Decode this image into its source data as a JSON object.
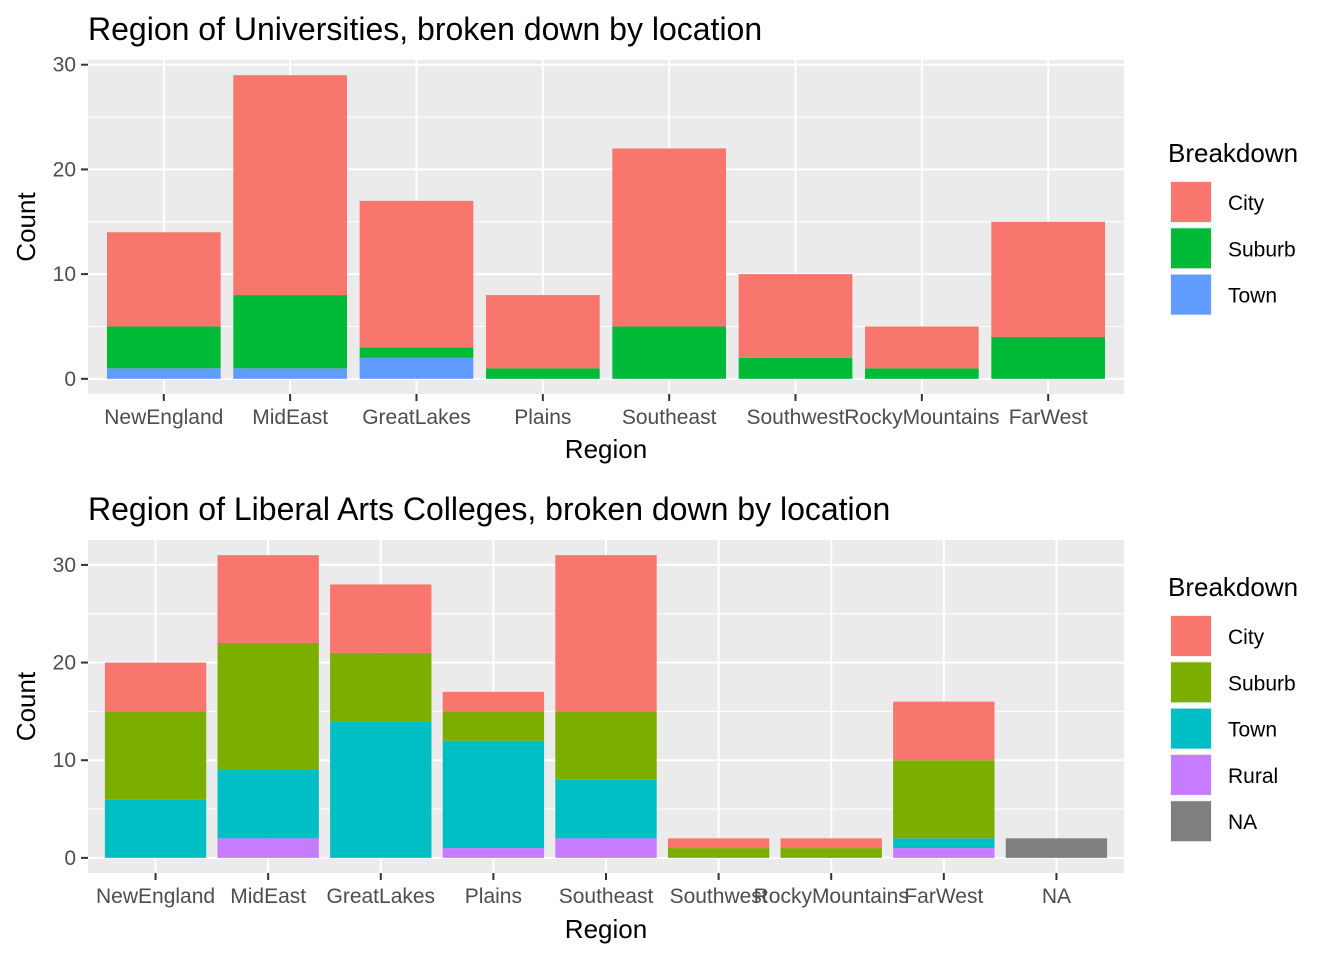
{
  "chart_data": [
    {
      "type": "bar",
      "stacked": true,
      "title": "Region of Universities, broken down by location",
      "xlabel": "Region",
      "ylabel": "Count",
      "ylim": [
        0,
        30
      ],
      "yticks": [
        0,
        10,
        20,
        30
      ],
      "grid": true,
      "legend_title": "Breakdown",
      "legend_position": "right",
      "categories": [
        "NewEngland",
        "MidEast",
        "GreatLakes",
        "Plains",
        "Southeast",
        "Southwest",
        "RockyMountains",
        "FarWest"
      ],
      "series": [
        {
          "name": "City",
          "color": "#F8766D",
          "values": [
            9,
            21,
            14,
            7,
            17,
            8,
            4,
            11
          ]
        },
        {
          "name": "Suburb",
          "color": "#00BA38",
          "values": [
            4,
            7,
            1,
            1,
            5,
            2,
            1,
            4
          ]
        },
        {
          "name": "Town",
          "color": "#619CFF",
          "values": [
            1,
            1,
            2,
            0,
            0,
            0,
            0,
            0
          ]
        }
      ]
    },
    {
      "type": "bar",
      "stacked": true,
      "title": "Region of Liberal Arts Colleges, broken down by location",
      "xlabel": "Region",
      "ylabel": "Count",
      "ylim": [
        0,
        31
      ],
      "yticks": [
        0,
        10,
        20,
        30
      ],
      "grid": true,
      "legend_title": "Breakdown",
      "legend_position": "right",
      "categories": [
        "NewEngland",
        "MidEast",
        "GreatLakes",
        "Plains",
        "Southeast",
        "Southwest",
        "RockyMountains",
        "FarWest",
        "NA"
      ],
      "series": [
        {
          "name": "City",
          "color": "#F8766D",
          "values": [
            5,
            9,
            7,
            2,
            16,
            1,
            1,
            6,
            0
          ]
        },
        {
          "name": "Suburb",
          "color": "#7CAE00",
          "values": [
            9,
            13,
            7,
            3,
            7,
            1,
            1,
            8,
            0
          ]
        },
        {
          "name": "Town",
          "color": "#00BFC4",
          "values": [
            6,
            7,
            14,
            11,
            6,
            0,
            0,
            1,
            0
          ]
        },
        {
          "name": "Rural",
          "color": "#C77CFF",
          "values": [
            0,
            2,
            0,
            1,
            2,
            0,
            0,
            1,
            0
          ]
        },
        {
          "name": "NA",
          "color": "#7F7F7F",
          "values": [
            0,
            0,
            0,
            0,
            0,
            0,
            0,
            0,
            2
          ]
        }
      ]
    }
  ]
}
